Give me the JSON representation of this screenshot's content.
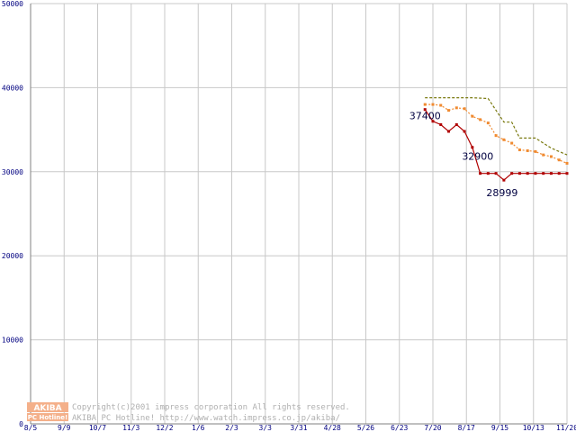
{
  "colors": {
    "background": "#ffffff",
    "grid": "#c8c8c8",
    "tick_text": "#000080",
    "series_min": "#b00000",
    "series_avg": "#f08a30",
    "series_max": "#7a7a10",
    "logo": "#f4b08a"
  },
  "logo": {
    "line1": "AKIBA",
    "line2": "PC Hotline!"
  },
  "copyright": {
    "line1": "Copyright(c)2001 impress corporation All rights reserved.",
    "line2": "AKIBA PC Hotline!  http://www.watch.impress.co.jp/akiba/"
  },
  "chart_data": {
    "type": "line",
    "x_tick_labels": [
      "8/5",
      "9/9",
      "10/7",
      "11/3",
      "12/2",
      "1/6",
      "2/3",
      "3/3",
      "3/31",
      "4/28",
      "5/26",
      "6/23",
      "7/20",
      "8/17",
      "9/15",
      "10/13",
      "11/20"
    ],
    "y_tick_labels": [
      "0",
      "10000",
      "20000",
      "30000",
      "40000",
      "50000"
    ],
    "ylim": [
      0,
      50000
    ],
    "grid": true,
    "x_index_range": [
      0,
      68
    ],
    "series": [
      {
        "key": "max",
        "style": "dashed",
        "x": [
          50,
          52,
          54,
          56,
          58,
          60,
          61,
          62,
          64,
          66,
          68
        ],
        "values": [
          38800,
          38800,
          38800,
          38800,
          38700,
          35900,
          35900,
          34000,
          34000,
          32800,
          32000
        ]
      },
      {
        "key": "avg",
        "style": "dotted",
        "x": [
          50,
          51,
          52,
          53,
          54,
          55,
          56,
          57,
          58,
          59,
          60,
          61,
          62,
          63,
          64,
          65,
          66,
          67,
          68
        ],
        "values": [
          38000,
          38000,
          37900,
          37300,
          37600,
          37500,
          36600,
          36200,
          35800,
          34300,
          33800,
          33400,
          32600,
          32500,
          32400,
          32000,
          31800,
          31400,
          31000
        ]
      },
      {
        "key": "min",
        "style": "solid",
        "x": [
          50,
          51,
          52,
          53,
          54,
          55,
          56,
          57,
          58,
          59,
          60,
          61,
          62,
          63,
          64,
          65,
          66,
          67,
          68
        ],
        "values": [
          37400,
          36000,
          35600,
          34800,
          35600,
          34800,
          32900,
          29800,
          29800,
          29800,
          28999,
          29800,
          29800,
          29800,
          29800,
          29800,
          29800,
          29800,
          29800
        ]
      }
    ],
    "annotations": [
      {
        "text": "37400",
        "x": 50,
        "y": 37400
      },
      {
        "text": "32900",
        "x": 56,
        "y": 32900
      },
      {
        "text": "28999",
        "x": 60,
        "y": 28999
      }
    ]
  }
}
